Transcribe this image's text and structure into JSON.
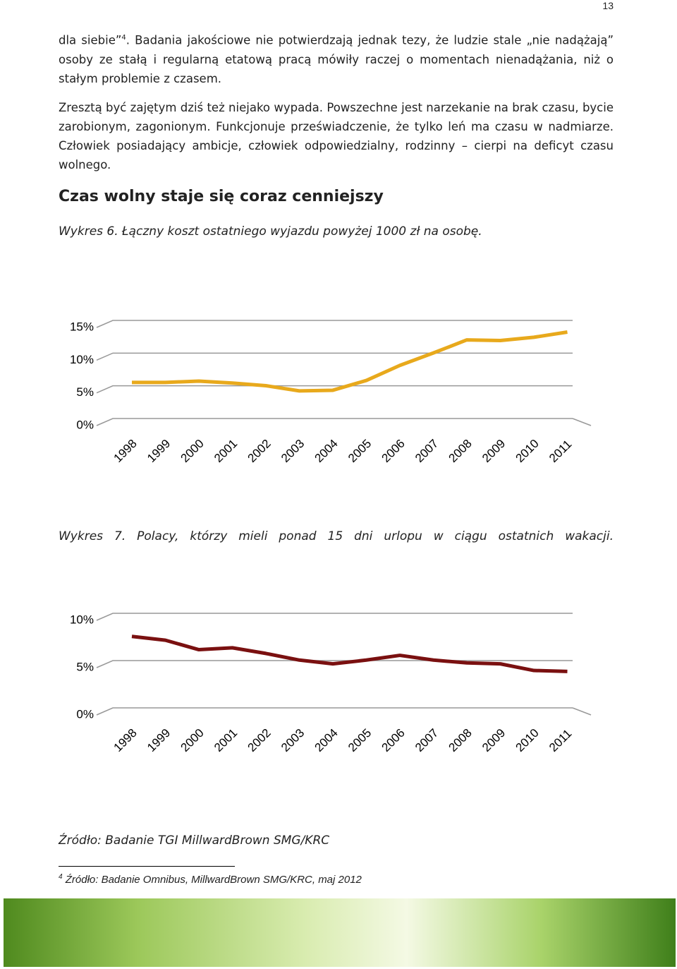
{
  "page_number": "13",
  "paragraphs": [
    [
      "dla siebie”",
      "4",
      ". Badania jakościowe nie potwierdzają jednak tezy, że ludzie stale „nie nadążają” osoby ze stałą i regularną etatową pracą mówiły raczej o momentach nienadążania, niż o stałym problemie z czasem."
    ],
    [
      "Zresztą być zajętym dziś też niejako wypada. Powszechne jest narzekanie na brak czasu, bycie zarobionym, zagonionym. Funkcjonuje przeświadczenie, że tylko leń ma czasu w nadmiarze. Człowiek posiadający ambicje, człowiek odpowiedzialny, rodzinny – cierpi na deficyt czasu wolnego."
    ]
  ],
  "heading": "Czas wolny staje się coraz cenniejszy",
  "chart_data": [
    {
      "type": "line",
      "title": "Wykres 6. Łączny koszt ostatniego wyjazdu powyżej 1000 zł na osobę.",
      "categories": [
        "1998",
        "1999",
        "2000",
        "2001",
        "2002",
        "2003",
        "2004",
        "2005",
        "2006",
        "2007",
        "2008",
        "2009",
        "2010",
        "2011"
      ],
      "values": [
        6.6,
        6.6,
        6.8,
        6.5,
        6.1,
        5.3,
        5.4,
        6.9,
        9.2,
        11.1,
        13.1,
        13.0,
        13.5,
        14.3
      ],
      "color": "#e8a91c",
      "ylim": [
        0,
        15
      ],
      "yticks": [
        {
          "value": 0,
          "label": "0%"
        },
        {
          "value": 5,
          "label": "5%"
        },
        {
          "value": 10,
          "label": "10%"
        },
        {
          "value": 15,
          "label": "15%"
        }
      ],
      "grid": true
    },
    {
      "type": "line",
      "title": "Wykres 7. Polacy, którzy mieli ponad 15 dni urlopu w ciągu ostatnich wakacji.",
      "categories": [
        "1998",
        "1999",
        "2000",
        "2001",
        "2002",
        "2003",
        "2004",
        "2005",
        "2006",
        "2007",
        "2008",
        "2009",
        "2010",
        "2011"
      ],
      "values": [
        8.3,
        7.9,
        6.9,
        7.1,
        6.5,
        5.8,
        5.4,
        5.8,
        6.3,
        5.8,
        5.5,
        5.4,
        4.7,
        4.6
      ],
      "color": "#7a1010",
      "ylim": [
        0,
        10
      ],
      "yticks": [
        {
          "value": 0,
          "label": "0%"
        },
        {
          "value": 5,
          "label": "5%"
        },
        {
          "value": 10,
          "label": "10%"
        }
      ],
      "grid": true
    }
  ],
  "source": "Źródło: Badanie TGI MillwardBrown SMG/KRC",
  "footnote": {
    "number": "4",
    "text": "Źródło: Badanie Omnibus, MillwardBrown SMG/KRC, maj 2012"
  }
}
